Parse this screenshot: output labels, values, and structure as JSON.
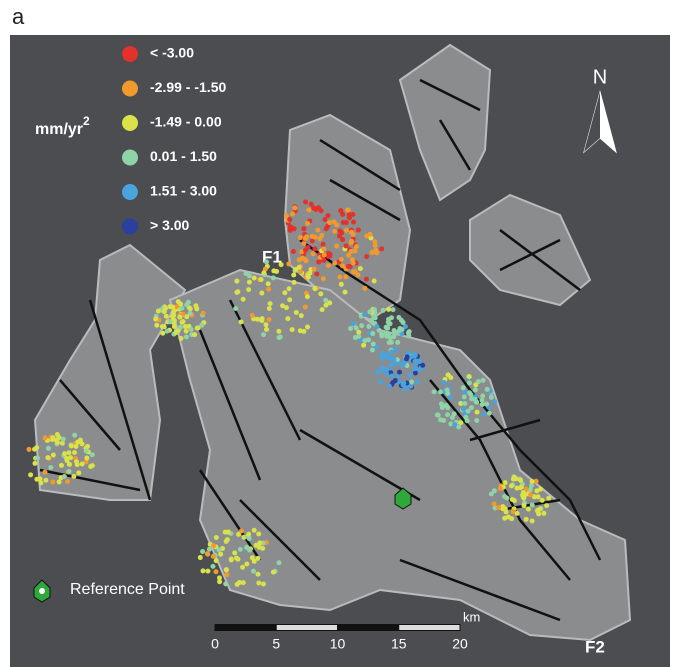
{
  "panel_label": "a",
  "legend": {
    "unit": "mm/yr",
    "unit_superscript": "2",
    "items": [
      {
        "label": "< -3.00",
        "color": "#e3312b"
      },
      {
        "label": "-2.99 - -1.50",
        "color": "#f29a2e"
      },
      {
        "label": "-1.49 - 0.00",
        "color": "#d9e24a"
      },
      {
        "label": "0.01 - 1.50",
        "color": "#8fd3a8"
      },
      {
        "label": "1.51 - 3.00",
        "color": "#4aa3dc"
      },
      {
        "label": "> 3.00",
        "color": "#2b3f9e"
      }
    ]
  },
  "north_label": "N",
  "fault_labels": [
    "F1",
    "F2"
  ],
  "reference_point": "Reference Point",
  "scale_bar": {
    "ticks": [
      0,
      5,
      10,
      15,
      20
    ],
    "unit": "km"
  }
}
